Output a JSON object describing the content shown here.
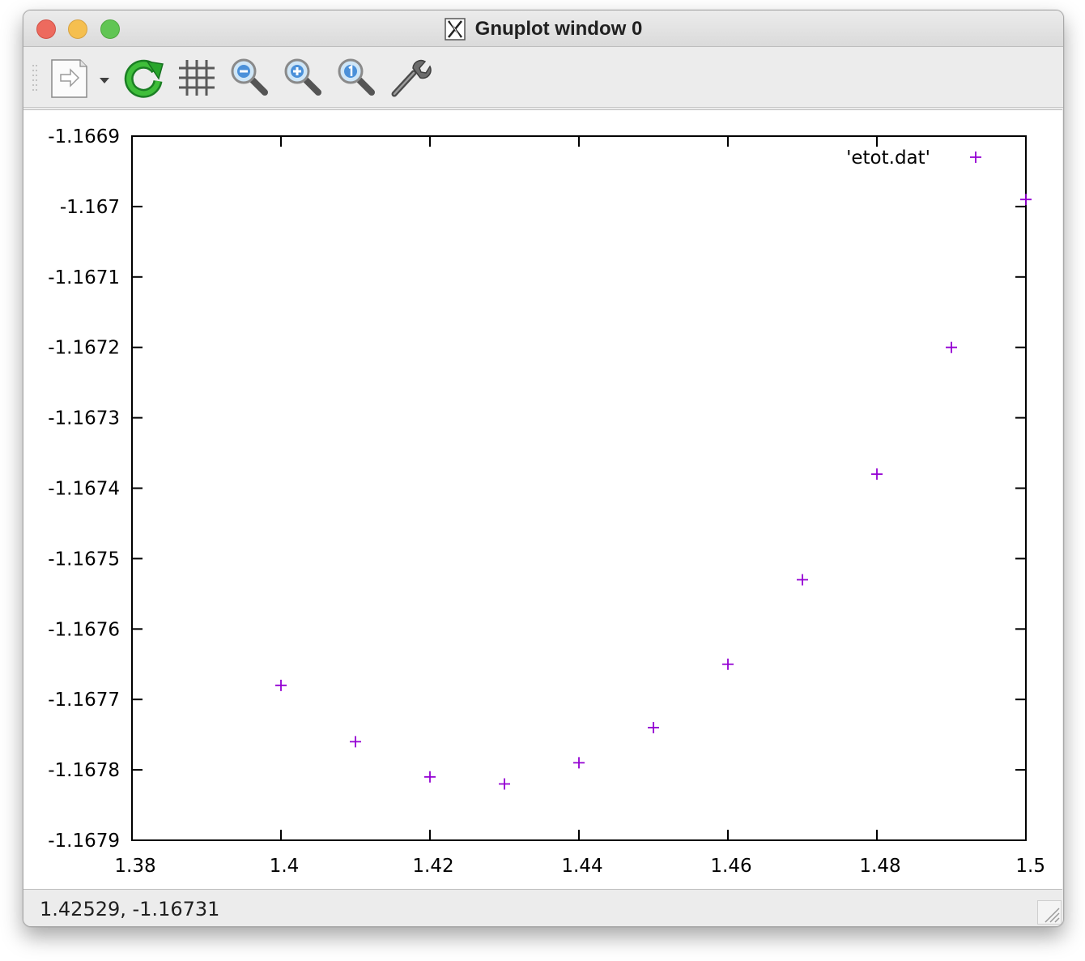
{
  "window": {
    "title": "Gnuplot window 0"
  },
  "toolbar": {
    "buttons": [
      {
        "name": "export-button",
        "icon": "export-document-icon"
      },
      {
        "name": "replot-button",
        "icon": "refresh-icon"
      },
      {
        "name": "grid-button",
        "icon": "grid-icon"
      },
      {
        "name": "zoom-previous-button",
        "icon": "zoom-out-icon"
      },
      {
        "name": "zoom-next-button",
        "icon": "zoom-in-icon"
      },
      {
        "name": "zoom-unzoom-button",
        "icon": "zoom-reset-icon"
      },
      {
        "name": "settings-button",
        "icon": "wrench-icon"
      }
    ]
  },
  "status": {
    "coordinates": "1.42529, -1.16731"
  },
  "colors": {
    "series": "#9400d3",
    "frame": "#000000",
    "background": "#ffffff"
  },
  "chart_data": {
    "type": "scatter",
    "title": "",
    "xlabel": "",
    "ylabel": "",
    "xlim": [
      1.38,
      1.5
    ],
    "ylim": [
      -1.1679,
      -1.1669
    ],
    "x_ticks": [
      "1.38",
      "1.4",
      "1.42",
      "1.44",
      "1.46",
      "1.48",
      "1.5"
    ],
    "x_tick_values": [
      1.38,
      1.4,
      1.42,
      1.44,
      1.46,
      1.48,
      1.5
    ],
    "y_ticks": [
      "-1.1669",
      "-1.167",
      "-1.1671",
      "-1.1672",
      "-1.1673",
      "-1.1674",
      "-1.1675",
      "-1.1676",
      "-1.1677",
      "-1.1678",
      "-1.1679"
    ],
    "y_tick_values": [
      -1.1669,
      -1.167,
      -1.1671,
      -1.1672,
      -1.1673,
      -1.1674,
      -1.1675,
      -1.1676,
      -1.1677,
      -1.1678,
      -1.1679
    ],
    "grid": false,
    "legend_position": "top-right",
    "series": [
      {
        "name": "'etot.dat'",
        "marker": "plus",
        "points": [
          [
            1.4,
            -1.16768
          ],
          [
            1.41,
            -1.16776
          ],
          [
            1.42,
            -1.16781
          ],
          [
            1.43,
            -1.16782
          ],
          [
            1.44,
            -1.16779
          ],
          [
            1.45,
            -1.16774
          ],
          [
            1.46,
            -1.16765
          ],
          [
            1.47,
            -1.16753
          ],
          [
            1.48,
            -1.16738
          ],
          [
            1.49,
            -1.1672
          ],
          [
            1.5,
            -1.16699
          ]
        ]
      }
    ]
  }
}
